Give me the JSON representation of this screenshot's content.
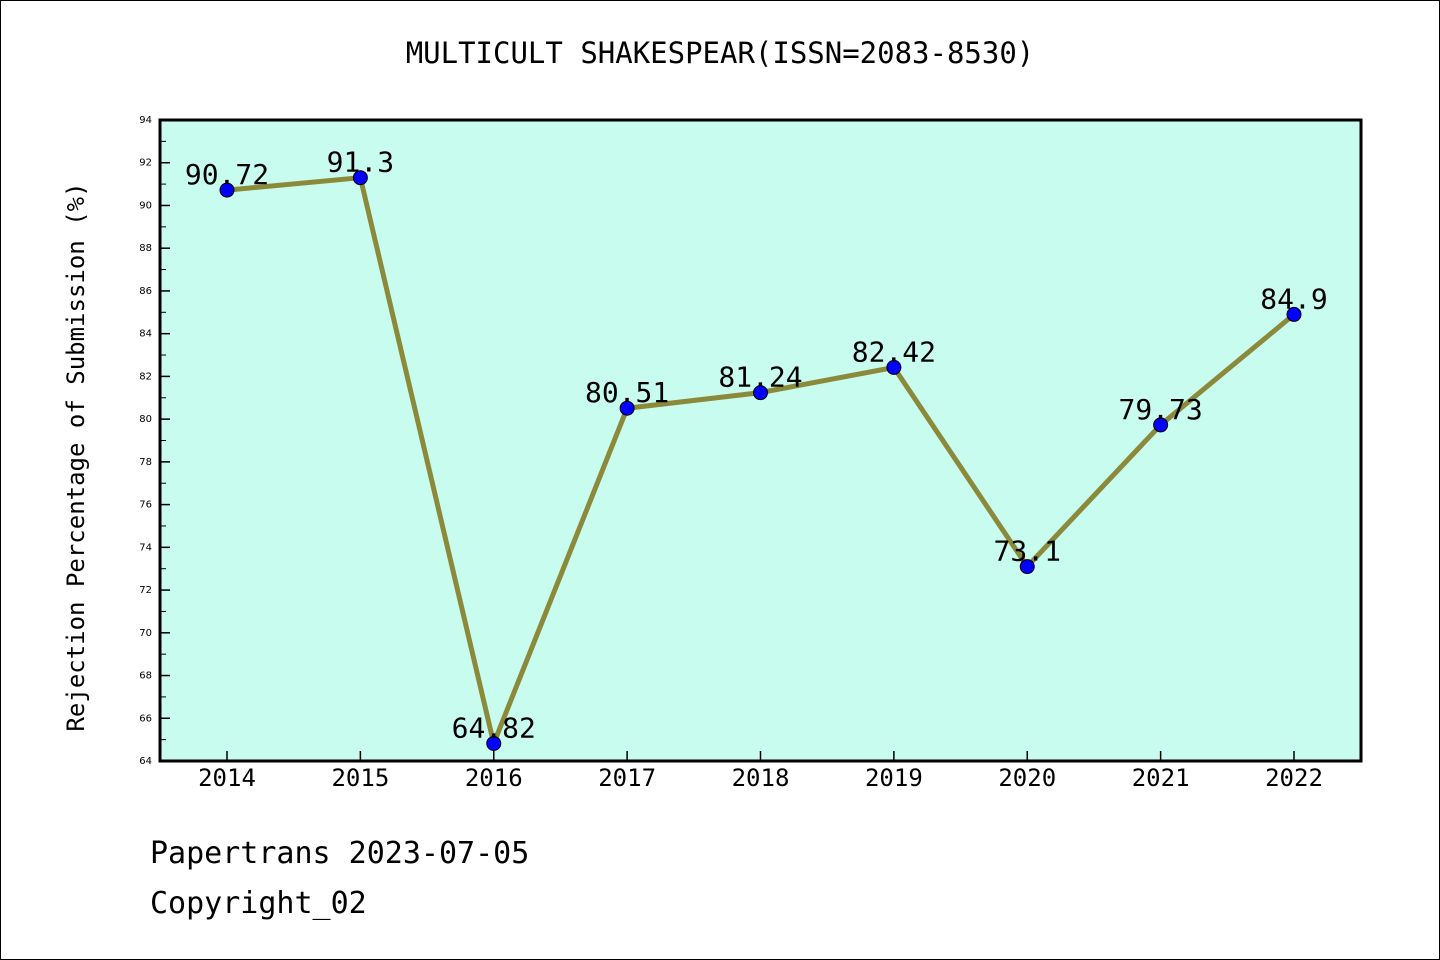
{
  "chart_data": {
    "type": "line",
    "title": "MULTICULT SHAKESPEAR(ISSN=2083-8530)",
    "xlabel": "",
    "ylabel": "Rejection Percentage of Submission (%)",
    "categories": [
      "2014",
      "2015",
      "2016",
      "2017",
      "2018",
      "2019",
      "2020",
      "2021",
      "2022"
    ],
    "series": [
      {
        "values": [
          90.72,
          91.3,
          64.82,
          80.51,
          81.24,
          82.42,
          73.1,
          79.73,
          84.9
        ],
        "labels": [
          "90.72",
          "91.3",
          "64.82",
          "80.51",
          "81.24",
          "82.42",
          "73.1",
          "79.73",
          "84.9"
        ]
      }
    ],
    "ylim": [
      64,
      94
    ],
    "yticks": [
      64,
      66,
      68,
      70,
      72,
      74,
      76,
      78,
      80,
      82,
      84,
      86,
      88,
      90,
      92,
      94
    ],
    "grid": false,
    "colors": {
      "plot_background": "#c8fcee",
      "line": "#8b8a3a",
      "marker": "#0000ff"
    }
  },
  "footer": {
    "source": "Papertrans 2023-07-05",
    "copyright": "Copyright_02"
  }
}
